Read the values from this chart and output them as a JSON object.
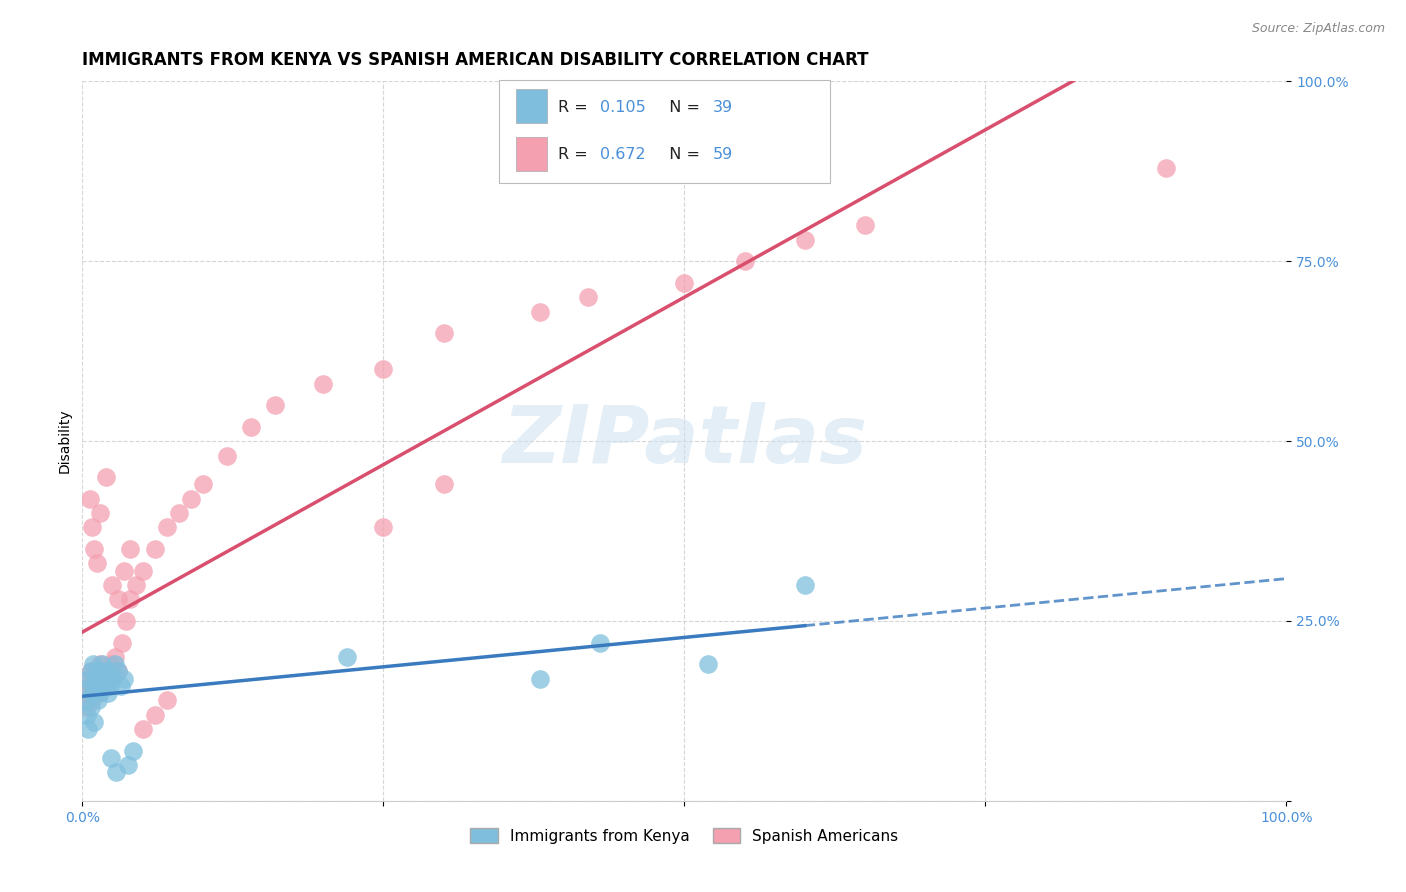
{
  "title": "IMMIGRANTS FROM KENYA VS SPANISH AMERICAN DISABILITY CORRELATION CHART",
  "source": "Source: ZipAtlas.com",
  "ylabel": "Disability",
  "watermark": "ZIPatlas",
  "xlim": [
    0,
    1
  ],
  "ylim": [
    0,
    1
  ],
  "xticks": [
    0.0,
    0.25,
    0.5,
    0.75,
    1.0
  ],
  "yticks": [
    0.0,
    0.25,
    0.5,
    0.75,
    1.0
  ],
  "xticklabels": [
    "0.0%",
    "",
    "",
    "",
    "100.0%"
  ],
  "yticklabels": [
    "",
    "25.0%",
    "50.0%",
    "75.0%",
    "100.0%"
  ],
  "r_kenya": 0.105,
  "n_kenya": 39,
  "r_spanish": 0.672,
  "n_spanish": 59,
  "color_kenya": "#7fbfdd",
  "color_spanish": "#f4a0b0",
  "color_kenya_line": "#3a7abf",
  "color_spanish_line": "#d94f6e",
  "background_color": "#ffffff",
  "grid_color": "#cccccc",
  "title_fontsize": 12,
  "axis_label_fontsize": 10,
  "tick_fontsize": 10,
  "kenya_x": [
    0.003,
    0.004,
    0.005,
    0.005,
    0.006,
    0.007,
    0.007,
    0.008,
    0.009,
    0.01,
    0.01,
    0.011,
    0.012,
    0.013,
    0.014,
    0.015,
    0.015,
    0.016,
    0.017,
    0.018,
    0.019,
    0.02,
    0.021,
    0.022,
    0.023,
    0.025,
    0.027,
    0.03,
    0.032,
    0.035,
    0.038,
    0.042,
    0.22,
    0.38,
    0.43,
    0.52,
    0.6,
    0.028,
    0.024
  ],
  "kenya_y": [
    0.14,
    0.12,
    0.17,
    0.1,
    0.16,
    0.18,
    0.13,
    0.15,
    0.19,
    0.16,
    0.11,
    0.18,
    0.17,
    0.14,
    0.16,
    0.15,
    0.18,
    0.19,
    0.17,
    0.16,
    0.18,
    0.17,
    0.15,
    0.18,
    0.16,
    0.17,
    0.19,
    0.18,
    0.16,
    0.17,
    0.05,
    0.07,
    0.2,
    0.17,
    0.22,
    0.19,
    0.3,
    0.04,
    0.06
  ],
  "spanish_x": [
    0.003,
    0.004,
    0.005,
    0.006,
    0.007,
    0.008,
    0.009,
    0.01,
    0.011,
    0.012,
    0.013,
    0.014,
    0.015,
    0.016,
    0.017,
    0.018,
    0.02,
    0.022,
    0.024,
    0.027,
    0.03,
    0.033,
    0.036,
    0.04,
    0.045,
    0.05,
    0.06,
    0.07,
    0.08,
    0.09,
    0.1,
    0.12,
    0.14,
    0.16,
    0.2,
    0.25,
    0.3,
    0.38,
    0.42,
    0.5,
    0.55,
    0.6,
    0.65,
    0.9,
    0.006,
    0.008,
    0.01,
    0.012,
    0.015,
    0.02,
    0.025,
    0.03,
    0.035,
    0.04,
    0.05,
    0.06,
    0.07,
    0.25,
    0.3
  ],
  "spanish_y": [
    0.13,
    0.15,
    0.17,
    0.16,
    0.18,
    0.14,
    0.16,
    0.17,
    0.15,
    0.18,
    0.16,
    0.17,
    0.19,
    0.18,
    0.17,
    0.16,
    0.18,
    0.17,
    0.19,
    0.2,
    0.18,
    0.22,
    0.25,
    0.28,
    0.3,
    0.32,
    0.35,
    0.38,
    0.4,
    0.42,
    0.44,
    0.48,
    0.52,
    0.55,
    0.58,
    0.6,
    0.65,
    0.68,
    0.7,
    0.72,
    0.75,
    0.78,
    0.8,
    0.88,
    0.42,
    0.38,
    0.35,
    0.33,
    0.4,
    0.45,
    0.3,
    0.28,
    0.32,
    0.35,
    0.1,
    0.12,
    0.14,
    0.38,
    0.44
  ]
}
